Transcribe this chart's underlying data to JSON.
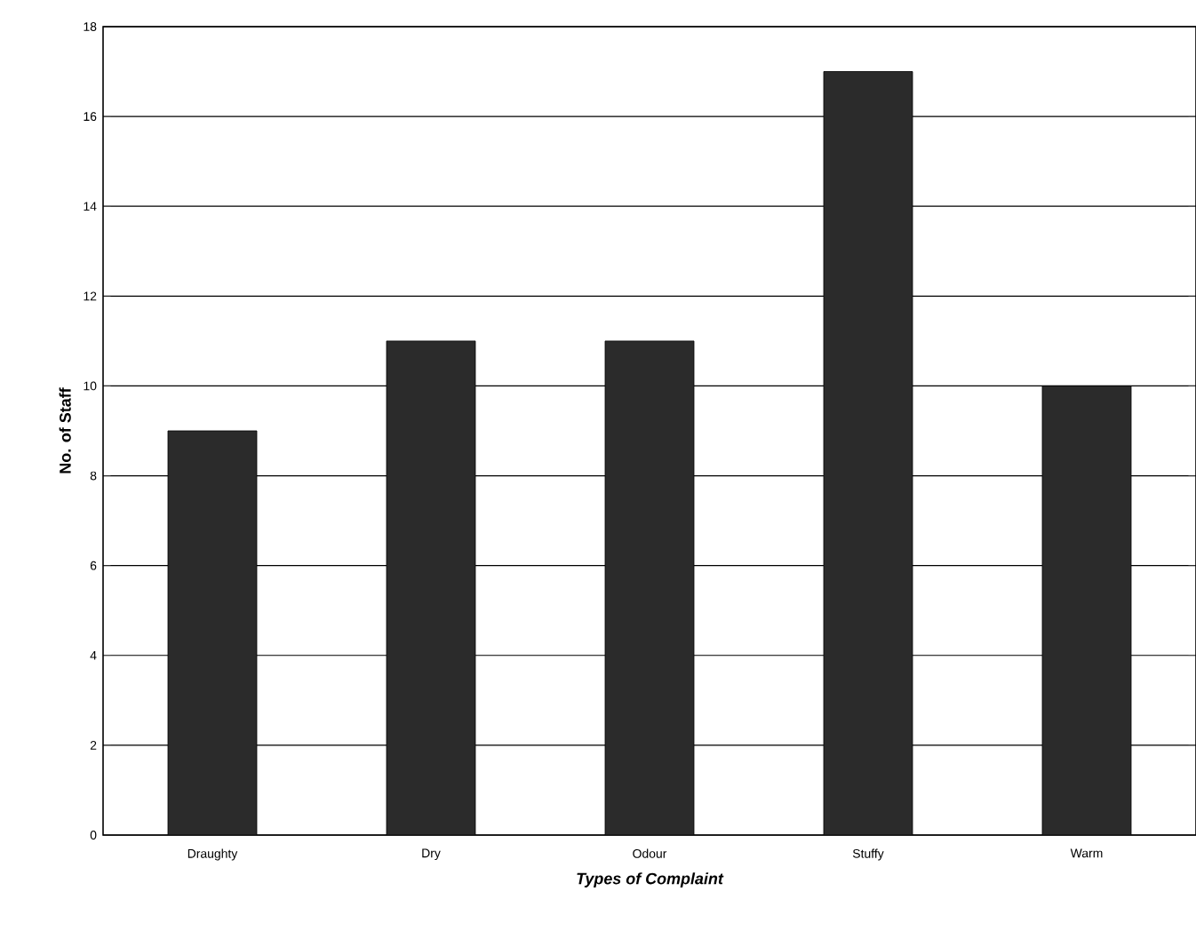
{
  "chart_data": {
    "type": "bar",
    "xlabel": "Types of Complaint",
    "ylabel": "No. of Staff",
    "categories": [
      "Draughty",
      "Dry",
      "Odour",
      "Stuffy",
      "Warm"
    ],
    "values": [
      9,
      11,
      11,
      17,
      10
    ],
    "color": "#2b2b2b",
    "ylim": [
      0,
      18
    ],
    "yticks": [
      0,
      2,
      4,
      6,
      8,
      10,
      12,
      14,
      16,
      18
    ],
    "grid": "y"
  }
}
